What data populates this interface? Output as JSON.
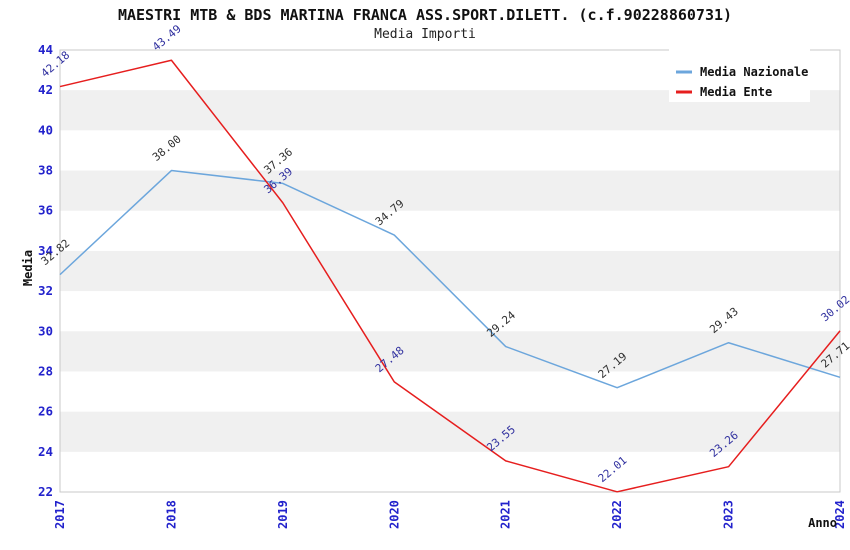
{
  "title": "MAESTRI MTB & BDS MARTINA FRANCA ASS.SPORT.DILETT. (c.f.90228860731)",
  "subtitle": "Media Importi",
  "chart_data": {
    "type": "line",
    "x": [
      "2017",
      "2018",
      "2019",
      "2020",
      "2021",
      "2022",
      "2023",
      "2024"
    ],
    "series": [
      {
        "name": "Media Nazionale",
        "color": "#6CA6DC",
        "label_color": "#303030",
        "values": [
          32.82,
          38.0,
          37.36,
          34.79,
          29.24,
          27.19,
          29.43,
          27.71
        ]
      },
      {
        "name": "Media Ente",
        "color": "#E61E1E",
        "label_color": "#30309F",
        "values": [
          42.18,
          43.49,
          36.39,
          27.48,
          23.55,
          22.01,
          23.26,
          30.02
        ]
      }
    ],
    "xlabel": "Anno",
    "ylabel": "Media",
    "ylim": [
      22,
      44
    ],
    "ytick_step": 2,
    "yticks": [
      22,
      24,
      26,
      28,
      30,
      32,
      34,
      36,
      38,
      40,
      42,
      44
    ],
    "legend_position": "top-right",
    "grid": "alternating-bands",
    "band_color": "#f0f0f0",
    "plot_border_color": "#c9c9c9",
    "axis_tick_color": "#2222CC",
    "axis_title_color": "#111111",
    "label_rotation_deg": -40
  }
}
